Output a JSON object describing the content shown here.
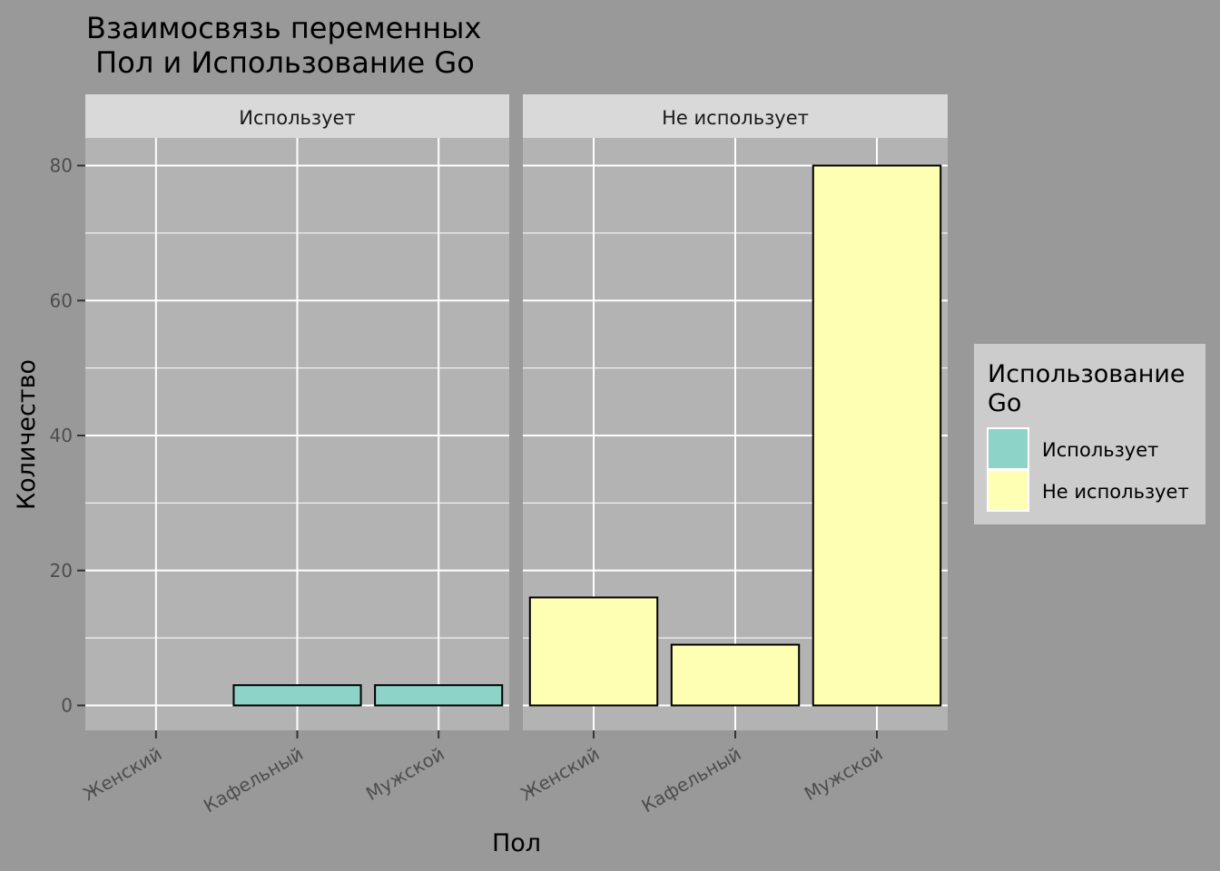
{
  "chart_data": {
    "type": "bar",
    "title": [
      "Взаимосвязь переменных",
      " Пол и Использование Go"
    ],
    "xlabel": "Пол",
    "ylabel": "Количество",
    "ylim": [
      0,
      80
    ],
    "yticks": [
      0,
      20,
      40,
      60,
      80
    ],
    "categories": [
      "Женский",
      "Кафельный",
      "Мужской"
    ],
    "facets": [
      {
        "label": "Использует",
        "fill": "#8dd3c7",
        "values": [
          0,
          3,
          3
        ]
      },
      {
        "label": "Не использует",
        "fill": "#ffffb3",
        "values": [
          16,
          9,
          80
        ]
      }
    ],
    "legend": {
      "title": [
        "Использование",
        "Go"
      ],
      "placement": "right",
      "items": [
        {
          "label": "Использует",
          "color": "#8dd3c7"
        },
        {
          "label": "Не использует",
          "color": "#ffffb3"
        }
      ]
    },
    "grid": true
  }
}
